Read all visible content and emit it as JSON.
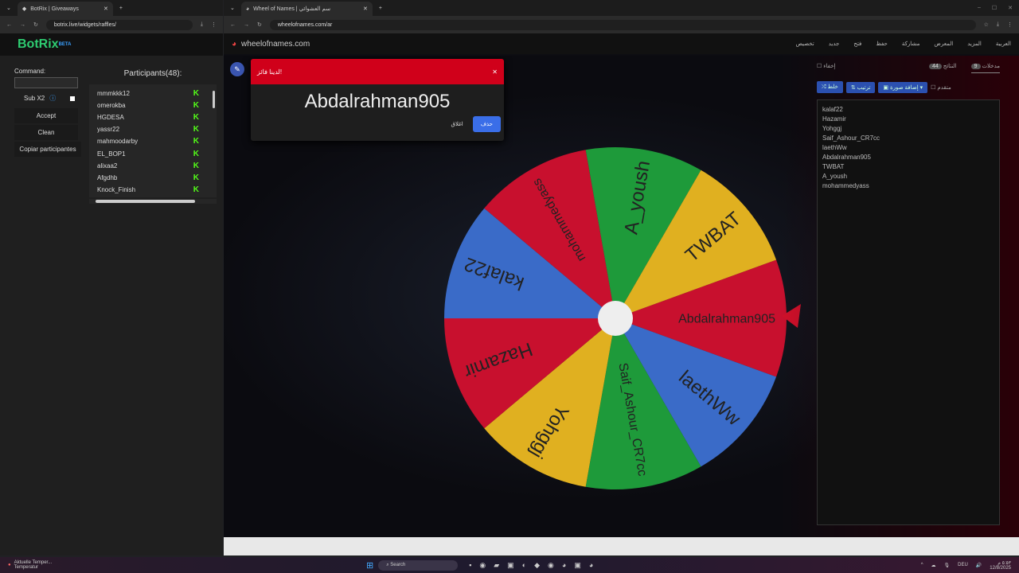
{
  "left": {
    "tab_title": "BotRix | Giveaways",
    "url": "botrix.live/widgets/raffles/",
    "brand": "BotRix",
    "brand_sup": "BETA",
    "command_label": "Command:",
    "sub_label": "Sub X2",
    "accept": "Accept",
    "clean": "Clean",
    "copy": "Copiar participantes",
    "participants_title": "Participants(48):",
    "participants": [
      "mmmkkk12",
      "omerokba",
      "HGDESA",
      "yassr22",
      "mahmoodarby",
      "EL_BOP1",
      "alixaa2",
      "Afgdhb",
      "Knock_Finish"
    ]
  },
  "right": {
    "tab_title": "Wheel of Names | سم العشوائي",
    "url": "wheelofnames.com/ar",
    "site": "wheelofnames.com",
    "menu": [
      "تخصيص",
      "جديد",
      "فتح",
      "حفظ",
      "مشاركة",
      "المعرض",
      "المزيد",
      "العربية"
    ],
    "tabs": [
      {
        "label": "مدخلات",
        "count": "9"
      },
      {
        "label": "النتائج",
        "count": "44"
      }
    ],
    "hide_label": "إخفاء",
    "tools": [
      "خلط",
      "ترتيب",
      "إضافة صورة"
    ],
    "advanced": "متقدم",
    "entries": [
      "kalaf22",
      "Hazamir",
      "Yohggj",
      "Saif_Ashour_CR7cc",
      "laethWw",
      "Abdalrahman905",
      "TWBAT",
      "A_yoush",
      "mohammedyass"
    ],
    "wheel": [
      {
        "name": "Abdalrahman905",
        "color": "#c8102e"
      },
      {
        "name": "laethWw",
        "color": "#3a6bc8"
      },
      {
        "name": "Saif_Ashour_CR7cc",
        "color": "#1e9a3a"
      },
      {
        "name": "Yohggj",
        "color": "#e0b020"
      },
      {
        "name": "Hazamir",
        "color": "#c8102e"
      },
      {
        "name": "kalaf22",
        "color": "#3a6bc8"
      },
      {
        "name": "mohammedyass",
        "color": "#c8102e"
      },
      {
        "name": "A_yoush",
        "color": "#1e9a3a"
      },
      {
        "name": "TWBAT",
        "color": "#e0b020"
      }
    ],
    "dialog": {
      "title": "لدينا فائز!",
      "winner": "Abdalrahman905",
      "close": "اغلاق",
      "remove": "حذف"
    }
  },
  "taskbar": {
    "weather": "Aktuelle Temper...",
    "weather_sub": "Temperatur",
    "search": "Search",
    "lang": "DEU",
    "time": "٥:٥٣ م",
    "date": "12/8/2025"
  }
}
